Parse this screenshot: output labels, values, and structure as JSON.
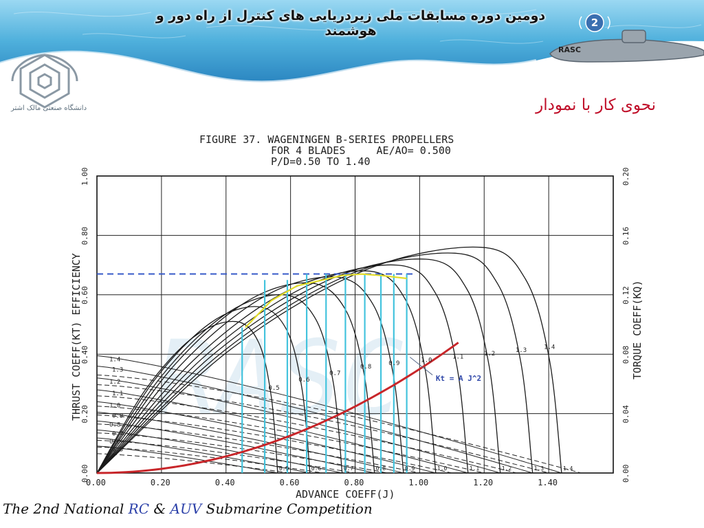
{
  "header": {
    "title": "دومین دوره مسابقات ملی زیردریایی های کنترل از راه دور و هوشمند",
    "page_number": "2",
    "logo_text": "RASC"
  },
  "university": {
    "caption": "دانشگاه صنعتی مالک اشتر"
  },
  "section_title": "نحوی کار با نمودار",
  "footer": {
    "part1": "The 2nd National ",
    "rc": "RC",
    "amp": " & ",
    "auv": "AUV",
    "part2": " Submarine Competition"
  },
  "colors": {
    "efficiency_curve": "#1b1b1b",
    "load_curve": "#c8262a",
    "reading_lines": "#43c3dd",
    "max_efficiency_line": "#3558c8",
    "efficiency_envelope": "#e2dc2a",
    "banner": "#4fb0dc"
  },
  "chart_data": {
    "type": "line",
    "title": "FIGURE 37. WAGENINGEN B-SERIES PROPELLERS",
    "subtitle_line1": "FOR 4 BLADES     AE/AO= 0.500",
    "subtitle_line2": "P/D=0.50 TO 1.40",
    "xlabel": "ADVANCE COEFF(J)",
    "ylabel_left": "THRUST COEFF(KT)   EFFICIENCY",
    "ylabel_right": "TORQUE COEFF(KQ)",
    "xlim": [
      0,
      1.6
    ],
    "ylim_left": [
      0,
      1.0
    ],
    "ylim_right": [
      0,
      0.2
    ],
    "x_ticks": [
      "0.00",
      "0.20",
      "0.40",
      "0.60",
      "0.80",
      "1.00",
      "1.20",
      "1.40"
    ],
    "y_left_ticks": [
      "0.00",
      "0.20",
      "0.40",
      "0.60",
      "0.80",
      "1.00"
    ],
    "y_right_ticks": [
      "0.00",
      "0.04",
      "0.08",
      "0.12",
      "0.16",
      "0.20"
    ],
    "pitch_ratios": [
      0.5,
      0.6,
      0.7,
      0.8,
      0.9,
      1.0,
      1.1,
      1.2,
      1.3,
      1.4
    ],
    "pitch_labels": [
      "0.5",
      "0.6",
      "0.7",
      "0.8",
      "0.9",
      "1.0",
      "1.1",
      "1.2",
      "1.3",
      "1.4"
    ],
    "left_curve_labels": [
      "1.4",
      "1.3",
      "1.2",
      "1.1",
      "1.0",
      "0.9",
      "0.8",
      "0.7",
      "0.6",
      "0.5"
    ],
    "efficiency_series": [
      {
        "pd": 0.5,
        "j_end": 0.56,
        "peak_j": 0.43,
        "peak_eta": 0.51
      },
      {
        "pd": 0.6,
        "j_end": 0.66,
        "peak_j": 0.5,
        "peak_eta": 0.56
      },
      {
        "pd": 0.7,
        "j_end": 0.76,
        "peak_j": 0.58,
        "peak_eta": 0.6
      },
      {
        "pd": 0.8,
        "j_end": 0.86,
        "peak_j": 0.66,
        "peak_eta": 0.64
      },
      {
        "pd": 0.9,
        "j_end": 0.95,
        "peak_j": 0.74,
        "peak_eta": 0.66
      },
      {
        "pd": 1.0,
        "j_end": 1.05,
        "peak_j": 0.84,
        "peak_eta": 0.68
      },
      {
        "pd": 1.1,
        "j_end": 1.15,
        "peak_j": 0.93,
        "peak_eta": 0.7
      },
      {
        "pd": 1.2,
        "j_end": 1.25,
        "peak_j": 1.02,
        "peak_eta": 0.72
      },
      {
        "pd": 1.3,
        "j_end": 1.35,
        "peak_j": 1.11,
        "peak_eta": 0.74
      },
      {
        "pd": 1.4,
        "j_end": 1.44,
        "peak_j": 1.19,
        "peak_eta": 0.76
      }
    ],
    "thrust_series": [
      {
        "pd": 0.5,
        "kt0": 0.091,
        "j_end": 0.56
      },
      {
        "pd": 0.6,
        "kt0": 0.118,
        "j_end": 0.66
      },
      {
        "pd": 0.7,
        "kt0": 0.145,
        "j_end": 0.76
      },
      {
        "pd": 0.8,
        "kt0": 0.175,
        "j_end": 0.86
      },
      {
        "pd": 0.9,
        "kt0": 0.205,
        "j_end": 0.95
      },
      {
        "pd": 1.0,
        "kt0": 0.24,
        "j_end": 1.05
      },
      {
        "pd": 1.1,
        "kt0": 0.28,
        "j_end": 1.15
      },
      {
        "pd": 1.2,
        "kt0": 0.32,
        "j_end": 1.25
      },
      {
        "pd": 1.3,
        "kt0": 0.36,
        "j_end": 1.35
      },
      {
        "pd": 1.4,
        "kt0": 0.395,
        "j_end": 1.44
      }
    ],
    "torque_series": [
      {
        "pd": 0.5,
        "kq0": 0.013,
        "j_end": 0.6
      },
      {
        "pd": 0.6,
        "kq0": 0.0175,
        "j_end": 0.7
      },
      {
        "pd": 0.7,
        "kq0": 0.022,
        "j_end": 0.8
      },
      {
        "pd": 0.8,
        "kq0": 0.027,
        "j_end": 0.9
      },
      {
        "pd": 0.9,
        "kq0": 0.033,
        "j_end": 1.0
      },
      {
        "pd": 1.0,
        "kq0": 0.039,
        "j_end": 1.1
      },
      {
        "pd": 1.1,
        "kq0": 0.045,
        "j_end": 1.2
      },
      {
        "pd": 1.2,
        "kq0": 0.052,
        "j_end": 1.3
      },
      {
        "pd": 1.3,
        "kq0": 0.0595,
        "j_end": 1.4
      },
      {
        "pd": 1.4,
        "kq0": 0.066,
        "j_end": 1.5
      }
    ],
    "load_curve": {
      "label": "Kt = A J^2",
      "A": 0.35,
      "j_max": 1.12
    },
    "max_efficiency_level": 0.67,
    "reading_line_j": [
      0.45,
      0.52,
      0.59,
      0.65,
      0.71,
      0.77,
      0.83,
      0.88,
      0.92,
      0.96
    ],
    "efficiency_envelope": {
      "j": [
        0.46,
        0.54,
        0.62,
        0.7,
        0.76,
        0.82,
        0.88,
        0.96
      ],
      "eta": [
        0.49,
        0.58,
        0.63,
        0.65,
        0.665,
        0.67,
        0.665,
        0.655
      ]
    }
  }
}
